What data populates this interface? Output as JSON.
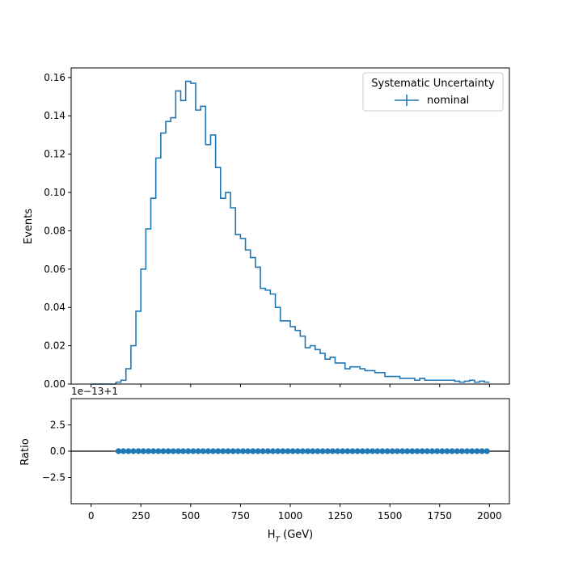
{
  "chart_data": [
    {
      "type": "line",
      "style": "step-histogram",
      "title": "",
      "xlabel": "",
      "ylabel": "Events",
      "xlim": [
        -100,
        2100
      ],
      "ylim": [
        0,
        0.165
      ],
      "xticks": [
        0,
        250,
        500,
        750,
        1000,
        1250,
        1500,
        1750,
        2000
      ],
      "yticks": [
        0.0,
        0.02,
        0.04,
        0.06,
        0.08,
        0.1,
        0.12,
        0.14,
        0.16
      ],
      "ytick_labels": [
        "0.00",
        "0.02",
        "0.04",
        "0.06",
        "0.08",
        "0.10",
        "0.12",
        "0.14",
        "0.16"
      ],
      "grid": false,
      "legend": {
        "title": "Systematic Uncertainty",
        "placement": "top-right",
        "entries": [
          "nominal"
        ]
      },
      "bin_width": 25,
      "series": [
        {
          "name": "nominal",
          "color": "#1f77b4",
          "bin_start": 0,
          "values": [
            0.0,
            0.0,
            0.0,
            0.0,
            0.0,
            0.001,
            0.002,
            0.008,
            0.02,
            0.038,
            0.06,
            0.081,
            0.097,
            0.118,
            0.131,
            0.137,
            0.139,
            0.153,
            0.148,
            0.158,
            0.157,
            0.143,
            0.145,
            0.125,
            0.13,
            0.113,
            0.097,
            0.1,
            0.092,
            0.078,
            0.076,
            0.07,
            0.066,
            0.061,
            0.05,
            0.049,
            0.047,
            0.04,
            0.033,
            0.033,
            0.03,
            0.028,
            0.025,
            0.019,
            0.02,
            0.018,
            0.016,
            0.013,
            0.014,
            0.011,
            0.011,
            0.008,
            0.009,
            0.009,
            0.008,
            0.007,
            0.007,
            0.006,
            0.006,
            0.004,
            0.004,
            0.004,
            0.003,
            0.003,
            0.003,
            0.002,
            0.003,
            0.002,
            0.002,
            0.002,
            0.002,
            0.002,
            0.002,
            0.0015,
            0.001,
            0.0015,
            0.002,
            0.001,
            0.0015,
            0.001
          ]
        }
      ]
    },
    {
      "type": "scatter",
      "title": "",
      "xlabel": "H_T (GeV)",
      "ylabel": "Ratio",
      "offset_text": "1e−13+1",
      "xlim": [
        -100,
        2100
      ],
      "ylim": [
        -5.0,
        5.0
      ],
      "xticks": [
        0,
        250,
        500,
        750,
        1000,
        1250,
        1500,
        1750,
        2000
      ],
      "xtick_labels": [
        "0",
        "250",
        "500",
        "750",
        "1000",
        "1250",
        "1500",
        "1750",
        "2000"
      ],
      "yticks": [
        -2.5,
        0.0,
        2.5
      ],
      "ytick_labels": [
        "−2.5",
        "0.0",
        "2.5"
      ],
      "grid": false,
      "reference_line": 0,
      "series": [
        {
          "color": "#1f77b4",
          "x": [
            137.5,
            162.5,
            187.5,
            212.5,
            237.5,
            262.5,
            287.5,
            312.5,
            337.5,
            362.5,
            387.5,
            412.5,
            437.5,
            462.5,
            487.5,
            512.5,
            537.5,
            562.5,
            587.5,
            612.5,
            637.5,
            662.5,
            687.5,
            712.5,
            737.5,
            762.5,
            787.5,
            812.5,
            837.5,
            862.5,
            887.5,
            912.5,
            937.5,
            962.5,
            987.5,
            1012.5,
            1037.5,
            1062.5,
            1087.5,
            1112.5,
            1137.5,
            1162.5,
            1187.5,
            1212.5,
            1237.5,
            1262.5,
            1287.5,
            1312.5,
            1337.5,
            1362.5,
            1387.5,
            1412.5,
            1437.5,
            1462.5,
            1487.5,
            1512.5,
            1537.5,
            1562.5,
            1587.5,
            1612.5,
            1637.5,
            1662.5,
            1687.5,
            1712.5,
            1737.5,
            1762.5,
            1787.5,
            1812.5,
            1837.5,
            1862.5,
            1887.5,
            1912.5,
            1937.5,
            1962.5,
            1987.5
          ],
          "y": [
            0,
            0,
            0,
            0,
            0,
            0,
            0,
            0,
            0,
            0,
            0,
            0,
            0,
            0,
            0,
            0,
            0,
            0,
            0,
            0,
            0,
            0,
            0,
            0,
            0,
            0,
            0,
            0,
            0,
            0,
            0,
            0,
            0,
            0,
            0,
            0,
            0,
            0,
            0,
            0,
            0,
            0,
            0,
            0,
            0,
            0,
            0,
            0,
            0,
            0,
            0,
            0,
            0,
            0,
            0,
            0,
            0,
            0,
            0,
            0,
            0,
            0,
            0,
            0,
            0,
            0,
            0,
            0,
            0,
            0,
            0,
            0,
            0,
            0,
            0
          ]
        }
      ]
    }
  ]
}
